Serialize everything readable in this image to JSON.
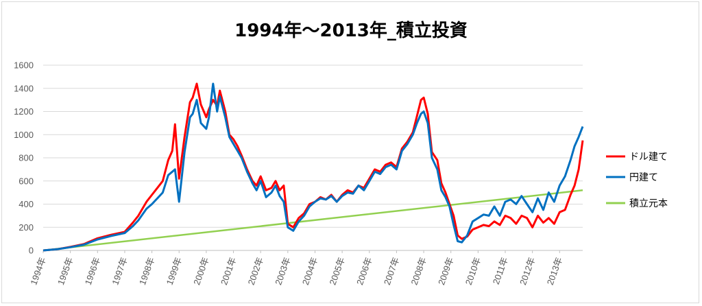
{
  "chart_data": {
    "type": "line",
    "title": "1994年～2013年_積立投資",
    "xlabel": "",
    "ylabel": "",
    "ylim": [
      0,
      1600
    ],
    "yticks": [
      0,
      200,
      400,
      600,
      800,
      1000,
      1200,
      1400,
      1600
    ],
    "xlim": [
      1994,
      2013.85
    ],
    "categories": [
      "1994年",
      "1995年",
      "1996年",
      "1997年",
      "1998年",
      "1999年",
      "2000年",
      "2001年",
      "2002年",
      "2003年",
      "2004年",
      "2005年",
      "2006年",
      "2007年",
      "2008年",
      "2009年",
      "2010年",
      "2011年",
      "2012年",
      "2013年"
    ],
    "grid": true,
    "legend_position": "right",
    "series": [
      {
        "name": "ドル建て",
        "color": "#ff0000",
        "x": [
          1994.0,
          1994.5,
          1995.0,
          1995.5,
          1996.0,
          1996.5,
          1997.0,
          1997.3,
          1997.5,
          1997.8,
          1998.0,
          1998.2,
          1998.4,
          1998.6,
          1998.75,
          1998.85,
          1999.0,
          1999.2,
          1999.4,
          1999.5,
          1999.65,
          1999.8,
          2000.0,
          2000.1,
          2000.25,
          2000.4,
          2000.5,
          2000.7,
          2000.85,
          2001.0,
          2001.15,
          2001.3,
          2001.5,
          2001.7,
          2001.85,
          2002.0,
          2002.2,
          2002.4,
          2002.55,
          2002.7,
          2002.85,
          2003.0,
          2003.2,
          2003.4,
          2003.6,
          2003.8,
          2004.0,
          2004.2,
          2004.4,
          2004.6,
          2004.8,
          2005.0,
          2005.2,
          2005.4,
          2005.6,
          2005.8,
          2006.0,
          2006.2,
          2006.4,
          2006.6,
          2006.8,
          2007.0,
          2007.2,
          2007.4,
          2007.6,
          2007.75,
          2007.9,
          2008.0,
          2008.15,
          2008.3,
          2008.5,
          2008.65,
          2008.8,
          2008.95,
          2009.1,
          2009.25,
          2009.4,
          2009.6,
          2009.8,
          2010.0,
          2010.2,
          2010.4,
          2010.6,
          2010.8,
          2011.0,
          2011.2,
          2011.4,
          2011.6,
          2011.8,
          2012.0,
          2012.2,
          2012.4,
          2012.6,
          2012.8,
          2013.0,
          2013.2,
          2013.4,
          2013.55,
          2013.7,
          2013.85
        ],
        "values": [
          0,
          10,
          30,
          55,
          105,
          135,
          160,
          240,
          300,
          420,
          480,
          540,
          600,
          780,
          860,
          1090,
          620,
          980,
          1280,
          1320,
          1440,
          1260,
          1150,
          1220,
          1300,
          1250,
          1380,
          1200,
          1000,
          960,
          900,
          820,
          700,
          600,
          560,
          640,
          520,
          540,
          600,
          520,
          560,
          230,
          200,
          280,
          320,
          400,
          420,
          460,
          440,
          480,
          420,
          480,
          520,
          500,
          560,
          540,
          620,
          700,
          680,
          740,
          760,
          720,
          880,
          940,
          1020,
          1160,
          1300,
          1320,
          1180,
          850,
          780,
          580,
          500,
          400,
          300,
          130,
          100,
          120,
          180,
          200,
          220,
          210,
          250,
          220,
          300,
          280,
          230,
          300,
          280,
          200,
          300,
          240,
          280,
          230,
          330,
          350,
          480,
          560,
          700,
          950
        ]
      },
      {
        "name": "円建て",
        "color": "#0070c0",
        "x": [
          1994.0,
          1994.5,
          1995.0,
          1995.5,
          1996.0,
          1996.5,
          1997.0,
          1997.3,
          1997.5,
          1997.8,
          1998.0,
          1998.2,
          1998.4,
          1998.6,
          1998.75,
          1998.85,
          1999.0,
          1999.2,
          1999.4,
          1999.5,
          1999.65,
          1999.8,
          2000.0,
          2000.1,
          2000.25,
          2000.4,
          2000.5,
          2000.7,
          2000.85,
          2001.0,
          2001.15,
          2001.3,
          2001.5,
          2001.7,
          2001.85,
          2002.0,
          2002.2,
          2002.4,
          2002.55,
          2002.7,
          2002.85,
          2003.0,
          2003.2,
          2003.4,
          2003.6,
          2003.8,
          2004.0,
          2004.2,
          2004.4,
          2004.6,
          2004.8,
          2005.0,
          2005.2,
          2005.4,
          2005.6,
          2005.8,
          2006.0,
          2006.2,
          2006.4,
          2006.6,
          2006.8,
          2007.0,
          2007.2,
          2007.4,
          2007.6,
          2007.75,
          2007.9,
          2008.0,
          2008.15,
          2008.3,
          2008.5,
          2008.65,
          2008.8,
          2008.95,
          2009.1,
          2009.25,
          2009.4,
          2009.6,
          2009.8,
          2010.0,
          2010.2,
          2010.4,
          2010.6,
          2010.8,
          2011.0,
          2011.2,
          2011.4,
          2011.6,
          2011.8,
          2012.0,
          2012.2,
          2012.4,
          2012.6,
          2012.8,
          2013.0,
          2013.2,
          2013.4,
          2013.55,
          2013.7,
          2013.85
        ],
        "values": [
          0,
          10,
          28,
          50,
          95,
          125,
          150,
          210,
          260,
          360,
          400,
          450,
          500,
          650,
          680,
          700,
          420,
          850,
          1150,
          1180,
          1300,
          1100,
          1050,
          1150,
          1440,
          1200,
          1330,
          1150,
          980,
          920,
          860,
          800,
          680,
          580,
          520,
          600,
          460,
          500,
          560,
          470,
          420,
          200,
          170,
          250,
          300,
          380,
          420,
          450,
          440,
          470,
          420,
          470,
          500,
          490,
          560,
          520,
          600,
          680,
          660,
          720,
          740,
          700,
          860,
          920,
          1000,
          1100,
          1180,
          1200,
          1100,
          800,
          700,
          520,
          460,
          380,
          220,
          80,
          70,
          130,
          250,
          280,
          310,
          300,
          380,
          300,
          420,
          440,
          400,
          470,
          400,
          330,
          450,
          350,
          500,
          420,
          560,
          640,
          780,
          900,
          980,
          1070
        ]
      },
      {
        "name": "積立元本",
        "color": "#92d050",
        "x": [
          1994.0,
          2013.85
        ],
        "values": [
          0,
          520
        ]
      }
    ]
  }
}
